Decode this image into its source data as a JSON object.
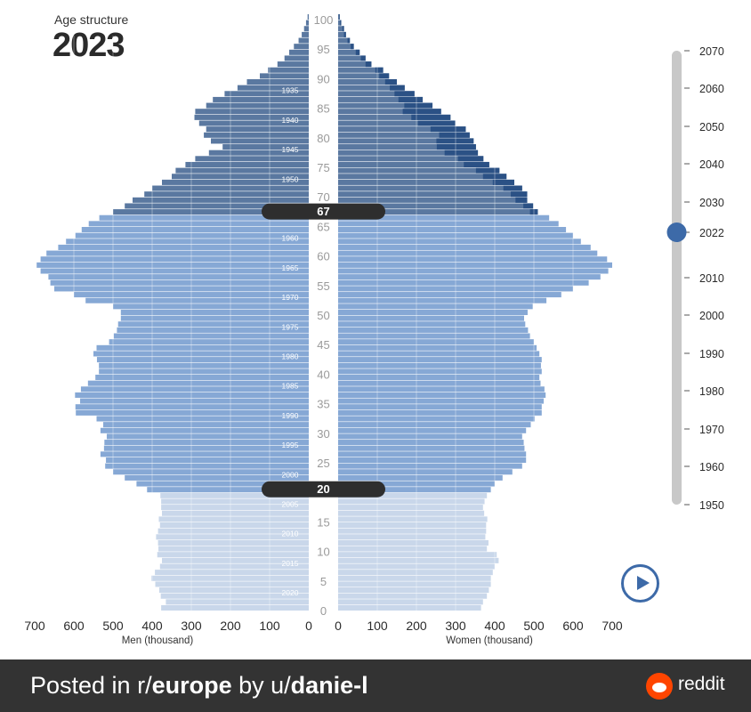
{
  "header": {
    "label": "Age structure",
    "year": "2023"
  },
  "footer": {
    "prefix": "Posted in r/",
    "subreddit": "europe",
    "by": " by u/",
    "user": "danie-l",
    "brand": "reddit"
  },
  "timeline": {
    "ticks": [
      "2070",
      "2060",
      "2050",
      "2040",
      "2030",
      "2022",
      "2010",
      "2000",
      "1990",
      "1980",
      "1970",
      "1960",
      "1950"
    ],
    "current": "2022"
  },
  "play_label": "play",
  "chart_data": {
    "type": "population-pyramid",
    "year": 2023,
    "xlabel_left": "Men (thousand)",
    "xlabel_right": "Women (thousand)",
    "x_ticks_left": [
      "700",
      "600",
      "500",
      "400",
      "300",
      "200",
      "100",
      "0"
    ],
    "x_ticks_right": [
      "0",
      "100",
      "200",
      "300",
      "400",
      "500",
      "600",
      "700"
    ],
    "xlim": [
      0,
      700
    ],
    "age_ticks": [
      "100",
      "95",
      "90",
      "85",
      "80",
      "75",
      "70",
      "65",
      "60",
      "55",
      "50",
      "45",
      "40",
      "35",
      "30",
      "25",
      "20",
      "15",
      "10",
      "5",
      "0"
    ],
    "birth_year_labels": [
      "1935",
      "1940",
      "1945",
      "1950",
      "1960",
      "1965",
      "1970",
      "1975",
      "1980",
      "1985",
      "1990",
      "1995",
      "2000",
      "2005",
      "2010",
      "2015",
      "2020"
    ],
    "markers": [
      {
        "age": 67,
        "label": "67"
      },
      {
        "age": 20,
        "label": "20"
      }
    ],
    "colors": {
      "retired": "#5a78a0",
      "working": "#86a8d5",
      "young": "#c9d7ea",
      "excess": "#2b5185"
    },
    "men": [
      377,
      365,
      378,
      382,
      392,
      402,
      393,
      380,
      375,
      387,
      384,
      385,
      390,
      385,
      380,
      383,
      375,
      377,
      377,
      379,
      413,
      440,
      470,
      500,
      520,
      518,
      532,
      523,
      522,
      516,
      532,
      525,
      542,
      595,
      596,
      584,
      597,
      582,
      564,
      545,
      536,
      536,
      541,
      550,
      542,
      510,
      498,
      490,
      487,
      480,
      480,
      500,
      570,
      600,
      650,
      660,
      665,
      685,
      695,
      685,
      670,
      640,
      620,
      596,
      580,
      562,
      535,
      500,
      470,
      450,
      420,
      400,
      375,
      350,
      340,
      315,
      290,
      255,
      220,
      250,
      268,
      262,
      280,
      292,
      290,
      262,
      245,
      215,
      182,
      158,
      125,
      104,
      80,
      62,
      50,
      38,
      26,
      18,
      12,
      7,
      3
    ],
    "women": [
      365,
      370,
      380,
      385,
      390,
      390,
      395,
      400,
      410,
      405,
      380,
      384,
      376,
      378,
      378,
      381,
      373,
      370,
      374,
      380,
      390,
      400,
      420,
      445,
      470,
      480,
      480,
      476,
      474,
      470,
      480,
      492,
      502,
      520,
      520,
      525,
      530,
      527,
      517,
      514,
      520,
      518,
      520,
      514,
      507,
      500,
      490,
      485,
      478,
      475,
      484,
      497,
      532,
      570,
      600,
      640,
      670,
      690,
      700,
      687,
      662,
      645,
      620,
      600,
      582,
      563,
      539,
      510,
      498,
      483,
      483,
      470,
      450,
      430,
      412,
      386,
      371,
      357,
      352,
      346,
      336,
      326,
      299,
      287,
      263,
      241,
      216,
      195,
      170,
      150,
      130,
      115,
      85,
      70,
      55,
      40,
      30,
      20,
      15,
      8,
      4
    ],
    "women_excess": [
      0,
      0,
      0,
      0,
      0,
      0,
      0,
      0,
      0,
      0,
      0,
      0,
      0,
      0,
      0,
      0,
      0,
      0,
      0,
      0,
      0,
      0,
      0,
      0,
      0,
      0,
      0,
      0,
      0,
      0,
      0,
      0,
      0,
      0,
      0,
      0,
      0,
      0,
      0,
      0,
      0,
      0,
      0,
      0,
      0,
      0,
      0,
      0,
      0,
      0,
      0,
      0,
      0,
      0,
      0,
      0,
      0,
      0,
      0,
      0,
      0,
      0,
      0,
      0,
      0,
      0,
      0,
      20,
      25,
      30,
      42,
      48,
      55,
      60,
      60,
      65,
      65,
      85,
      100,
      95,
      78,
      90,
      95,
      100,
      98,
      72,
      62,
      51,
      38,
      30,
      25,
      20,
      15,
      12,
      10,
      8,
      6,
      5,
      4,
      3,
      2
    ]
  }
}
